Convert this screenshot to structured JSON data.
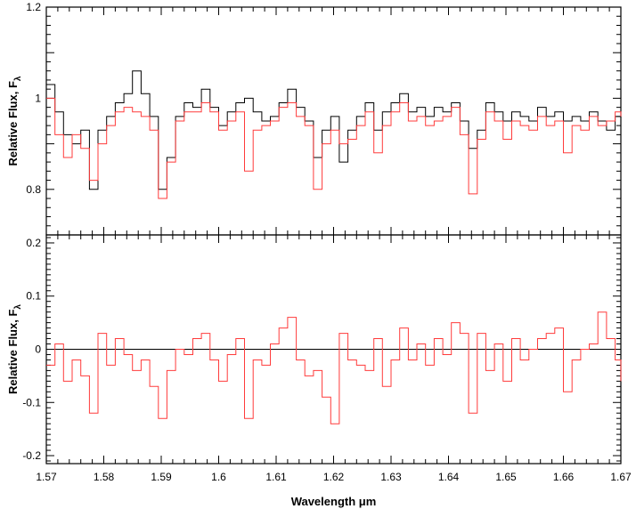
{
  "chart_data": [
    {
      "type": "line",
      "panel": "top",
      "xlim": [
        1.57,
        1.67
      ],
      "ylim": [
        0.7,
        1.2
      ],
      "ylabel": "Relative Flux, F",
      "ylabel_sub": "λ",
      "yticks": [
        {
          "value": 0.8,
          "label": "0.8"
        },
        {
          "value": 1.0,
          "label": "1"
        },
        {
          "value": 1.2,
          "label": "1.2"
        }
      ],
      "series": [
        {
          "color": "#000000",
          "step": true,
          "points": [
            [
              1.57,
              1.03
            ],
            [
              1.5715,
              0.97
            ],
            [
              1.573,
              0.92
            ],
            [
              1.5745,
              0.9
            ],
            [
              1.576,
              0.93
            ],
            [
              1.5775,
              0.8
            ],
            [
              1.579,
              0.93
            ],
            [
              1.5805,
              0.96
            ],
            [
              1.582,
              0.99
            ],
            [
              1.5835,
              1.01
            ],
            [
              1.585,
              1.06
            ],
            [
              1.5865,
              1.01
            ],
            [
              1.588,
              0.96
            ],
            [
              1.5895,
              0.8
            ],
            [
              1.591,
              0.87
            ],
            [
              1.5925,
              0.96
            ],
            [
              1.594,
              0.99
            ],
            [
              1.5955,
              0.98
            ],
            [
              1.597,
              1.02
            ],
            [
              1.5985,
              0.98
            ],
            [
              1.6,
              0.94
            ],
            [
              1.6015,
              0.97
            ],
            [
              1.603,
              0.99
            ],
            [
              1.6045,
              1.0
            ],
            [
              1.606,
              0.97
            ],
            [
              1.6075,
              0.95
            ],
            [
              1.609,
              0.96
            ],
            [
              1.6105,
              0.99
            ],
            [
              1.612,
              1.02
            ],
            [
              1.6135,
              0.98
            ],
            [
              1.615,
              0.95
            ],
            [
              1.6165,
              0.87
            ],
            [
              1.618,
              0.93
            ],
            [
              1.6195,
              0.96
            ],
            [
              1.621,
              0.86
            ],
            [
              1.6225,
              0.93
            ],
            [
              1.624,
              0.96
            ],
            [
              1.6255,
              0.99
            ],
            [
              1.627,
              0.93
            ],
            [
              1.6285,
              0.97
            ],
            [
              1.63,
              0.99
            ],
            [
              1.6315,
              1.01
            ],
            [
              1.633,
              0.97
            ],
            [
              1.6345,
              0.98
            ],
            [
              1.636,
              0.96
            ],
            [
              1.6375,
              0.98
            ],
            [
              1.639,
              0.97
            ],
            [
              1.6405,
              0.99
            ],
            [
              1.642,
              0.95
            ],
            [
              1.6435,
              0.89
            ],
            [
              1.645,
              0.93
            ],
            [
              1.6465,
              0.99
            ],
            [
              1.648,
              0.97
            ],
            [
              1.6495,
              0.95
            ],
            [
              1.651,
              0.97
            ],
            [
              1.6525,
              0.96
            ],
            [
              1.654,
              0.95
            ],
            [
              1.6555,
              0.98
            ],
            [
              1.657,
              0.96
            ],
            [
              1.6585,
              0.97
            ],
            [
              1.66,
              0.95
            ],
            [
              1.6615,
              0.96
            ],
            [
              1.663,
              0.95
            ],
            [
              1.6645,
              0.97
            ],
            [
              1.666,
              0.95
            ],
            [
              1.6675,
              0.93
            ],
            [
              1.669,
              0.96
            ],
            [
              1.67,
              0.97
            ]
          ]
        },
        {
          "color": "#ff3b3b",
          "step": true,
          "points": [
            [
              1.57,
              1.0
            ],
            [
              1.5715,
              0.92
            ],
            [
              1.573,
              0.87
            ],
            [
              1.5745,
              0.92
            ],
            [
              1.576,
              0.89
            ],
            [
              1.5775,
              0.82
            ],
            [
              1.579,
              0.9
            ],
            [
              1.5805,
              0.94
            ],
            [
              1.582,
              0.97
            ],
            [
              1.5835,
              0.98
            ],
            [
              1.585,
              0.97
            ],
            [
              1.5865,
              0.96
            ],
            [
              1.588,
              0.93
            ],
            [
              1.5895,
              0.78
            ],
            [
              1.591,
              0.86
            ],
            [
              1.5925,
              0.95
            ],
            [
              1.594,
              0.97
            ],
            [
              1.5955,
              0.97
            ],
            [
              1.597,
              0.99
            ],
            [
              1.5985,
              0.97
            ],
            [
              1.6,
              0.93
            ],
            [
              1.6015,
              0.95
            ],
            [
              1.603,
              0.97
            ],
            [
              1.6045,
              0.84
            ],
            [
              1.606,
              0.93
            ],
            [
              1.6075,
              0.94
            ],
            [
              1.609,
              0.95
            ],
            [
              1.6105,
              0.98
            ],
            [
              1.612,
              0.99
            ],
            [
              1.6135,
              0.96
            ],
            [
              1.615,
              0.94
            ],
            [
              1.6165,
              0.8
            ],
            [
              1.618,
              0.9
            ],
            [
              1.6195,
              0.93
            ],
            [
              1.621,
              0.9
            ],
            [
              1.6225,
              0.91
            ],
            [
              1.624,
              0.94
            ],
            [
              1.6255,
              0.97
            ],
            [
              1.627,
              0.88
            ],
            [
              1.6285,
              0.94
            ],
            [
              1.63,
              0.97
            ],
            [
              1.6315,
              0.99
            ],
            [
              1.633,
              0.95
            ],
            [
              1.6345,
              0.96
            ],
            [
              1.636,
              0.94
            ],
            [
              1.6375,
              0.95
            ],
            [
              1.639,
              0.96
            ],
            [
              1.6405,
              0.98
            ],
            [
              1.642,
              0.92
            ],
            [
              1.6435,
              0.79
            ],
            [
              1.645,
              0.91
            ],
            [
              1.6465,
              0.97
            ],
            [
              1.648,
              0.95
            ],
            [
              1.6495,
              0.91
            ],
            [
              1.651,
              0.95
            ],
            [
              1.6525,
              0.94
            ],
            [
              1.654,
              0.93
            ],
            [
              1.6555,
              0.96
            ],
            [
              1.657,
              0.94
            ],
            [
              1.6585,
              0.95
            ],
            [
              1.66,
              0.88
            ],
            [
              1.6615,
              0.94
            ],
            [
              1.663,
              0.93
            ],
            [
              1.6645,
              0.96
            ],
            [
              1.666,
              0.94
            ],
            [
              1.6675,
              0.95
            ],
            [
              1.669,
              0.97
            ],
            [
              1.67,
              0.96
            ]
          ]
        }
      ]
    },
    {
      "type": "line",
      "panel": "bottom",
      "xlim": [
        1.57,
        1.67
      ],
      "ylim": [
        -0.215,
        0.215
      ],
      "xlabel": "Wavelength μm",
      "ylabel": "Relative Flux, F",
      "ylabel_sub": "λ",
      "zero_line": true,
      "xticks": [
        {
          "value": 1.57,
          "label": "1.57"
        },
        {
          "value": 1.58,
          "label": "1.58"
        },
        {
          "value": 1.59,
          "label": "1.59"
        },
        {
          "value": 1.6,
          "label": "1.6"
        },
        {
          "value": 1.61,
          "label": "1.61"
        },
        {
          "value": 1.62,
          "label": "1.62"
        },
        {
          "value": 1.63,
          "label": "1.63"
        },
        {
          "value": 1.64,
          "label": "1.64"
        },
        {
          "value": 1.65,
          "label": "1.65"
        },
        {
          "value": 1.66,
          "label": "1.66"
        },
        {
          "value": 1.67,
          "label": "1.67"
        }
      ],
      "yticks": [
        {
          "value": -0.2,
          "label": "-0.2"
        },
        {
          "value": -0.1,
          "label": "-0.1"
        },
        {
          "value": 0.0,
          "label": "0"
        },
        {
          "value": 0.1,
          "label": "0.1"
        },
        {
          "value": 0.2,
          "label": "0.2"
        }
      ],
      "series": [
        {
          "color": "#ff3b3b",
          "step": true,
          "points": [
            [
              1.57,
              -0.03
            ],
            [
              1.5715,
              0.01
            ],
            [
              1.573,
              -0.06
            ],
            [
              1.5745,
              -0.02
            ],
            [
              1.576,
              -0.05
            ],
            [
              1.5775,
              -0.12
            ],
            [
              1.579,
              0.03
            ],
            [
              1.5805,
              -0.03
            ],
            [
              1.582,
              0.02
            ],
            [
              1.5835,
              -0.01
            ],
            [
              1.585,
              -0.04
            ],
            [
              1.5865,
              -0.02
            ],
            [
              1.588,
              -0.07
            ],
            [
              1.5895,
              -0.13
            ],
            [
              1.591,
              -0.04
            ],
            [
              1.5925,
              0.0
            ],
            [
              1.594,
              -0.01
            ],
            [
              1.5955,
              0.02
            ],
            [
              1.597,
              0.03
            ],
            [
              1.5985,
              -0.02
            ],
            [
              1.6,
              -0.06
            ],
            [
              1.6015,
              -0.01
            ],
            [
              1.603,
              0.02
            ],
            [
              1.6045,
              -0.13
            ],
            [
              1.606,
              -0.02
            ],
            [
              1.6075,
              -0.03
            ],
            [
              1.609,
              0.01
            ],
            [
              1.6105,
              0.04
            ],
            [
              1.612,
              0.06
            ],
            [
              1.6135,
              -0.02
            ],
            [
              1.615,
              -0.05
            ],
            [
              1.6165,
              -0.04
            ],
            [
              1.618,
              -0.09
            ],
            [
              1.6195,
              -0.14
            ],
            [
              1.621,
              0.03
            ],
            [
              1.6225,
              -0.02
            ],
            [
              1.624,
              -0.03
            ],
            [
              1.6255,
              -0.04
            ],
            [
              1.627,
              0.02
            ],
            [
              1.6285,
              -0.07
            ],
            [
              1.63,
              -0.02
            ],
            [
              1.6315,
              0.04
            ],
            [
              1.633,
              -0.02
            ],
            [
              1.6345,
              0.01
            ],
            [
              1.636,
              -0.03
            ],
            [
              1.6375,
              0.02
            ],
            [
              1.639,
              -0.01
            ],
            [
              1.6405,
              0.05
            ],
            [
              1.642,
              0.03
            ],
            [
              1.6435,
              -0.12
            ],
            [
              1.645,
              0.03
            ],
            [
              1.6465,
              -0.04
            ],
            [
              1.648,
              0.01
            ],
            [
              1.6495,
              -0.06
            ],
            [
              1.651,
              0.02
            ],
            [
              1.6525,
              -0.02
            ],
            [
              1.654,
              0.0
            ],
            [
              1.6555,
              0.02
            ],
            [
              1.657,
              0.03
            ],
            [
              1.6585,
              0.04
            ],
            [
              1.66,
              -0.08
            ],
            [
              1.6615,
              -0.02
            ],
            [
              1.663,
              0.0
            ],
            [
              1.6645,
              0.01
            ],
            [
              1.666,
              0.07
            ],
            [
              1.6675,
              0.02
            ],
            [
              1.669,
              -0.02
            ],
            [
              1.67,
              -0.06
            ]
          ]
        }
      ]
    }
  ]
}
